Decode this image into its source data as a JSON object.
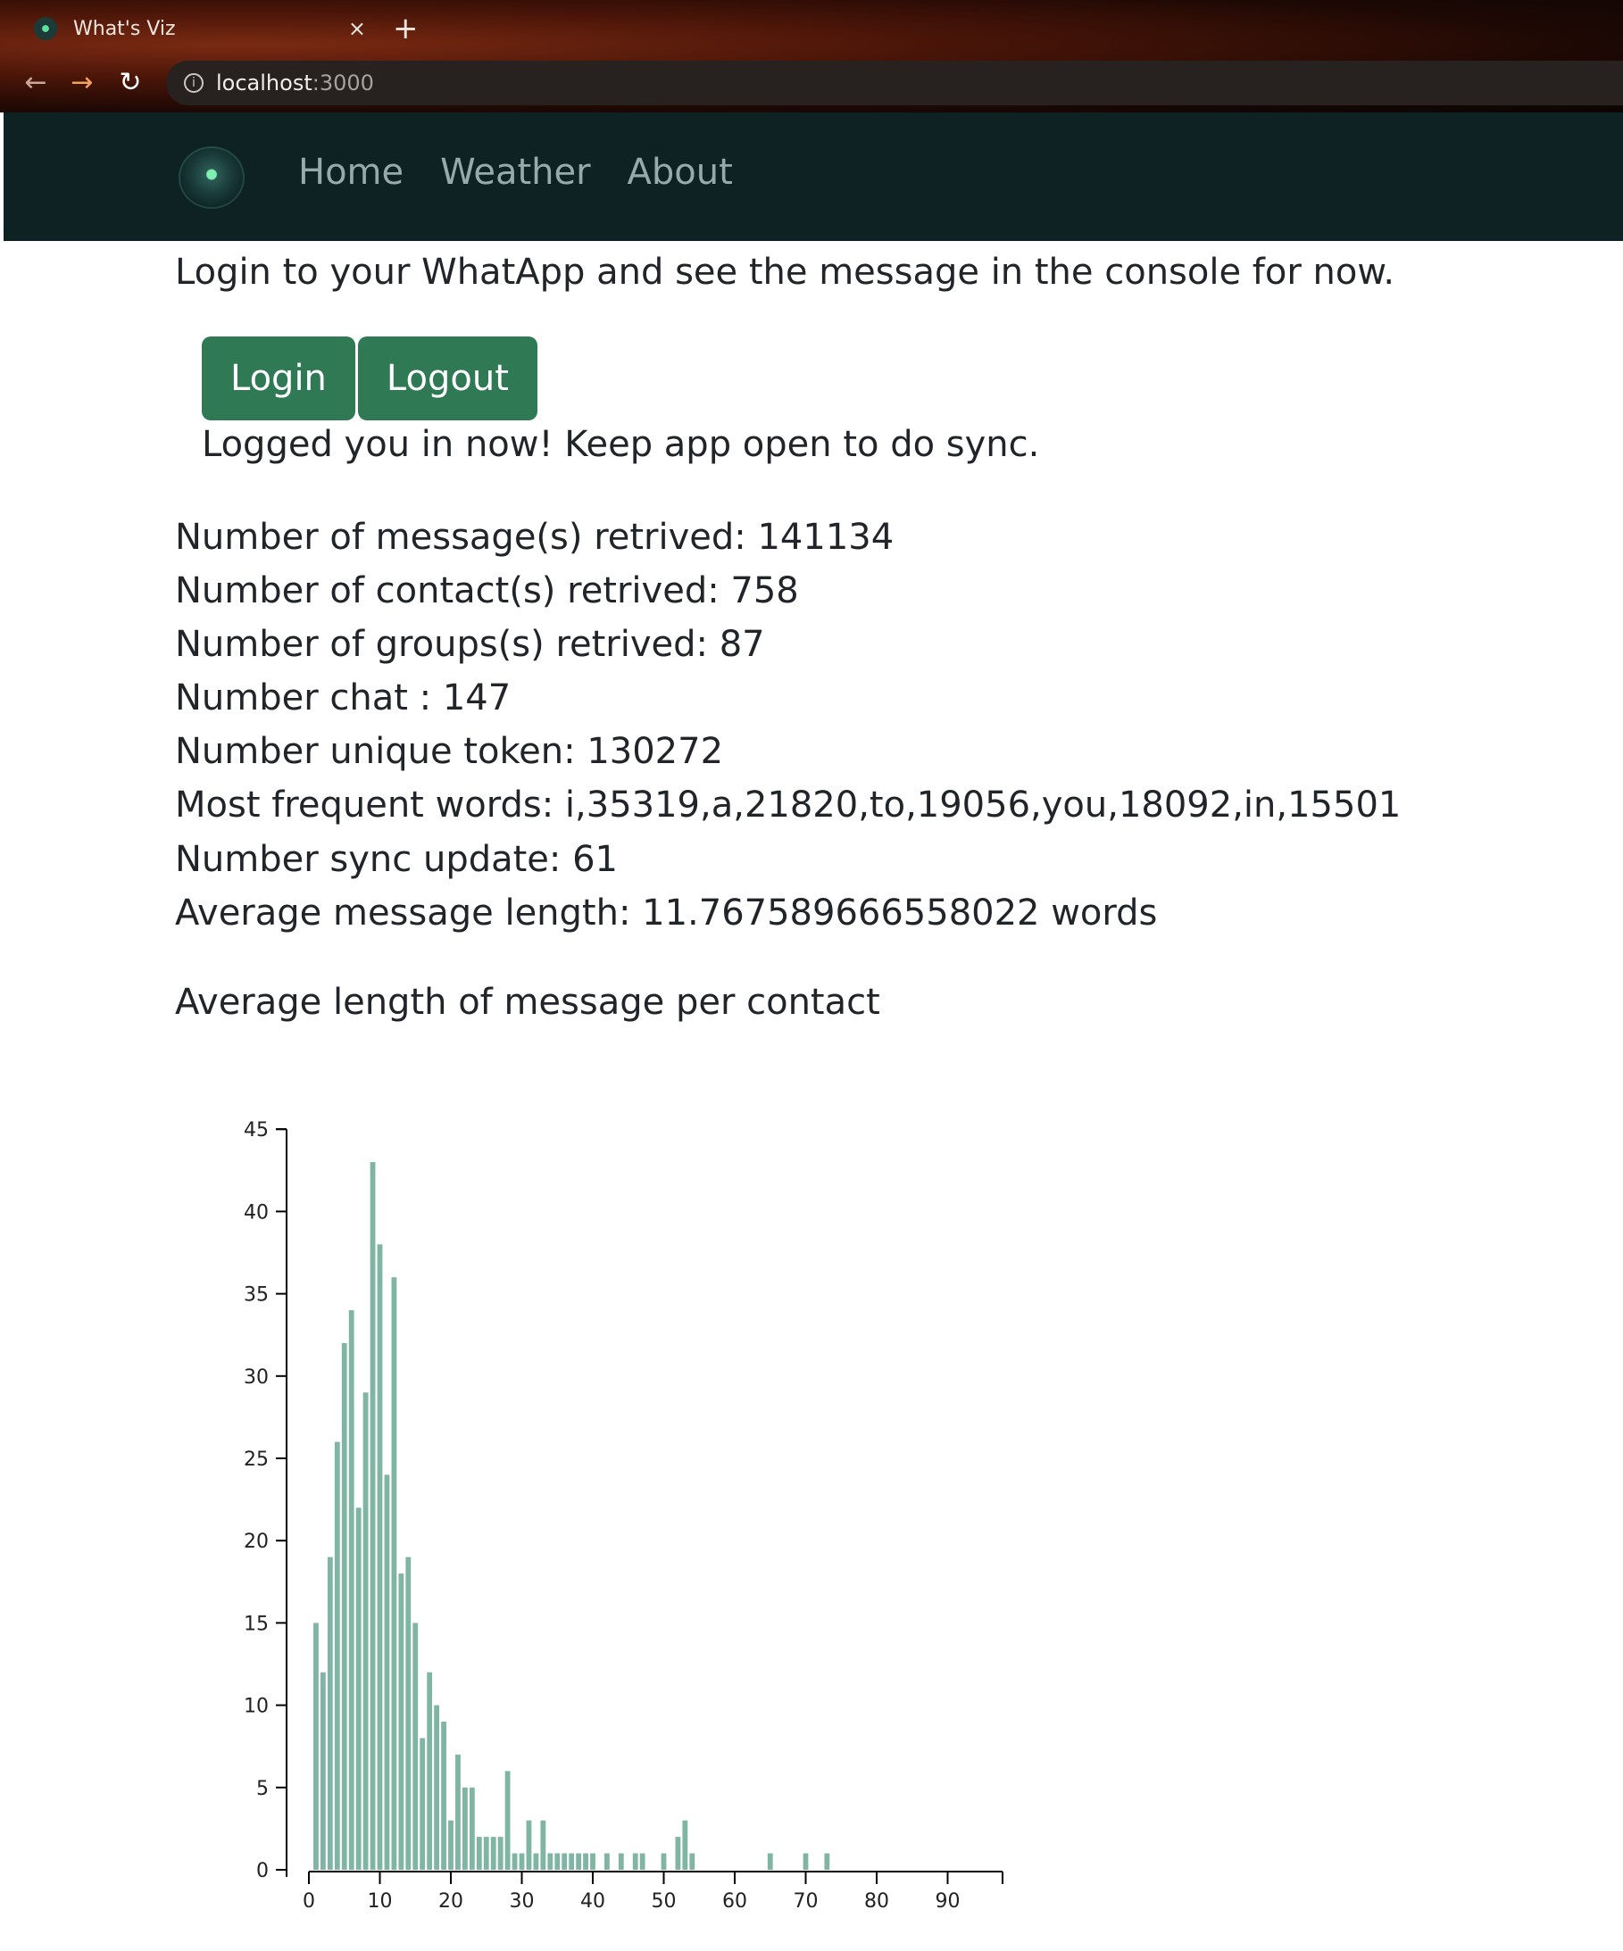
{
  "browser": {
    "tab_title": "What's Viz",
    "tab_close": "×",
    "new_tab": "+",
    "url_host": "localhost",
    "url_port": ":3000"
  },
  "nav": {
    "links": [
      "Home",
      "Weather",
      "About"
    ]
  },
  "content": {
    "intro": "Login to your WhatApp and see the message in the console for now.",
    "login_label": "Login",
    "logout_label": "Logout",
    "status": "Logged you in now! Keep app open to do sync.",
    "stats": [
      "Number of message(s) retrived: 141134",
      "Number of contact(s) retrived: 758",
      "Number of groups(s) retrived: 87",
      "Number chat : 147",
      "Number unique token: 130272",
      "Most frequent words: i,35319,a,21820,to,19056,you,18092,in,15501",
      "Number sync update: 61",
      "Average message length: 11.767589666558022 words"
    ],
    "chart_heading": "Average length of message per contact"
  },
  "colors": {
    "bar": "#7fb5a2",
    "button": "#2f7a55",
    "navbar": "#0e2123"
  },
  "chart_data": {
    "type": "bar",
    "title": "Average length of message per contact",
    "xlabel": "",
    "ylabel": "",
    "xlim": [
      0,
      98
    ],
    "ylim": [
      0,
      45
    ],
    "xticks": [
      0,
      10,
      20,
      30,
      40,
      50,
      60,
      70,
      80,
      90
    ],
    "yticks": [
      0,
      5,
      10,
      15,
      20,
      25,
      30,
      35,
      40,
      45
    ],
    "grid": false,
    "x": [
      1,
      2,
      3,
      4,
      5,
      6,
      7,
      8,
      9,
      10,
      11,
      12,
      13,
      14,
      15,
      16,
      17,
      18,
      19,
      20,
      21,
      22,
      23,
      24,
      25,
      26,
      27,
      28,
      29,
      30,
      31,
      32,
      33,
      34,
      35,
      36,
      37,
      38,
      39,
      40,
      42,
      44,
      46,
      47,
      50,
      52,
      53,
      54,
      65,
      70,
      73
    ],
    "values": [
      15,
      12,
      19,
      26,
      32,
      34,
      22,
      29,
      43,
      38,
      24,
      36,
      18,
      19,
      15,
      8,
      12,
      10,
      9,
      3,
      7,
      5,
      5,
      2,
      2,
      2,
      2,
      6,
      1,
      1,
      3,
      1,
      3,
      1,
      1,
      1,
      1,
      1,
      1,
      1,
      1,
      1,
      1,
      1,
      1,
      2,
      3,
      1,
      1,
      1,
      1
    ]
  }
}
